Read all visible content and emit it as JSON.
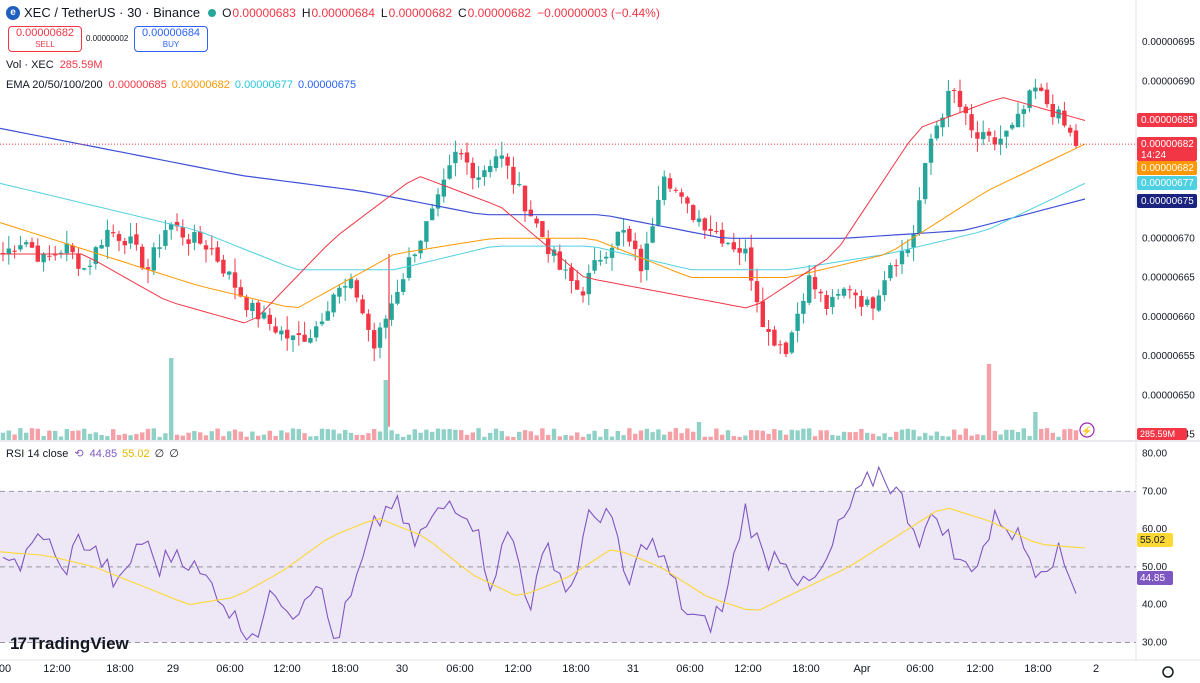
{
  "header": {
    "symbol_icon": "e",
    "title": "XEC / TetherUS · 30 · Binance",
    "o_label": "O",
    "o_value": "0.00000683",
    "h_label": "H",
    "h_value": "0.00000684",
    "l_label": "L",
    "l_value": "0.00000682",
    "c_label": "C",
    "c_value": "0.00000682",
    "change": "−0.00000003 (−0.44%)"
  },
  "trade": {
    "sell_price": "0.00000682",
    "sell_label": "SELL",
    "spread": "0.00000002",
    "buy_price": "0.00000684",
    "buy_label": "BUY"
  },
  "volume_legend": {
    "label": "Vol · XEC",
    "value": "285.59M"
  },
  "ema_legend": {
    "label": "EMA 20/50/100/200",
    "v20": "0.00000685",
    "v50": "0.00000682",
    "v100": "0.00000677",
    "v200": "0.00000675"
  },
  "rsi_legend": {
    "label": "RSI 14 close",
    "rsi": "44.85",
    "ma": "55.02",
    "extra1": "∅",
    "extra2": "∅"
  },
  "branding": {
    "logo_text": "TradingView",
    "logo_mark": "17"
  },
  "colors": {
    "up": "#26a69a",
    "down": "#f23645",
    "ema20": "#f23645",
    "ema50": "#ff9800",
    "ema100": "#4dd0e1",
    "ema200": "#3f51d8",
    "rsi_line": "#7e57c2",
    "rsi_ma": "#fdd835",
    "rsi_band": "#ede7f6"
  },
  "chart_data": [
    {
      "type": "candlestick",
      "title": "XEC / TetherUS · 30 · Binance",
      "ylim": [
        6.443e-06,
        6.973e-06
      ],
      "y_ticks": [
        "0.00000695",
        "0.00000690",
        "0.00000685",
        "0.00000680",
        "0.00000675",
        "0.00000670",
        "0.00000665",
        "0.00000660",
        "0.00000655",
        "0.00000650",
        "0.00000645"
      ],
      "x_ticks": [
        "00",
        "12:00",
        "18:00",
        "29",
        "06:00",
        "12:00",
        "18:00",
        "30",
        "06:00",
        "12:00",
        "18:00",
        "31",
        "06:00",
        "12:00",
        "18:00",
        "Apr",
        "06:00",
        "12:00",
        "18:00",
        "2"
      ],
      "series": [
        {
          "name": "price",
          "waypoints_close": [
            6.68e-06,
            6.7e-06,
            6.67e-06,
            6.69e-06,
            6.66e-06,
            6.71e-06,
            6.7e-06,
            6.66e-06,
            6.72e-06,
            6.7e-06,
            6.69e-06,
            6.65e-06,
            6.61e-06,
            6.59e-06,
            6.57e-06,
            6.58e-06,
            6.63e-06,
            6.64e-06,
            6.56e-06,
            6.63e-06,
            6.69e-06,
            6.74e-06,
            6.81e-06,
            6.78e-06,
            6.81e-06,
            6.76e-06,
            6.71e-06,
            6.66e-06,
            6.63e-06,
            6.68e-06,
            6.71e-06,
            6.66e-06,
            6.79e-06,
            6.74e-06,
            6.72e-06,
            6.7e-06,
            6.68e-06,
            6.58e-06,
            6.56e-06,
            6.65e-06,
            6.61e-06,
            6.64e-06,
            6.61e-06,
            6.67e-06,
            6.69e-06,
            6.83e-06,
            6.89e-06,
            6.83e-06,
            6.82e-06,
            6.84e-06,
            6.89e-06,
            6.86e-06,
            6.82e-06
          ]
        },
        {
          "name": "EMA 20",
          "values": [
            6.68e-06,
            6.68e-06,
            6.62e-06,
            6.59e-06,
            6.7e-06,
            6.78e-06,
            6.74e-06,
            6.65e-06,
            6.63e-06,
            6.61e-06,
            6.68e-06,
            6.84e-06,
            6.88e-06,
            6.85e-06
          ]
        },
        {
          "name": "EMA 50",
          "values": [
            6.72e-06,
            6.68e-06,
            6.64e-06,
            6.61e-06,
            6.68e-06,
            6.7e-06,
            6.7e-06,
            6.65e-06,
            6.65e-06,
            6.68e-06,
            6.76e-06,
            6.82e-06
          ]
        },
        {
          "name": "EMA 100",
          "values": [
            6.77e-06,
            6.74e-06,
            6.71e-06,
            6.66e-06,
            6.66e-06,
            6.69e-06,
            6.69e-06,
            6.66e-06,
            6.66e-06,
            6.68e-06,
            6.71e-06,
            6.77e-06
          ]
        },
        {
          "name": "EMA 200",
          "values": [
            6.84e-06,
            6.81e-06,
            6.78e-06,
            6.76e-06,
            6.73e-06,
            6.73e-06,
            6.7e-06,
            6.7e-06,
            6.71e-06,
            6.75e-06
          ]
        }
      ],
      "volume_last": "285.59M",
      "badges": [
        {
          "text": "0.00000685",
          "color": "#f23645"
        },
        {
          "text": "0.00000682",
          "sub": "14:24",
          "color": "#f23645"
        },
        {
          "text": "0.00000682",
          "color": "#ff9800"
        },
        {
          "text": "0.00000677",
          "color": "#4dd0e1"
        },
        {
          "text": "0.00000675",
          "color": "#1a237e"
        }
      ]
    },
    {
      "type": "line",
      "title": "RSI 14 close",
      "ylim": [
        28,
        82
      ],
      "y_ticks": [
        "80.00",
        "70.00",
        "60.00",
        "50.00",
        "40.00",
        "30.00"
      ],
      "bands": [
        30,
        50,
        70
      ],
      "series": [
        {
          "name": "RSI",
          "waypoints": [
            55,
            50,
            60,
            48,
            58,
            52,
            44,
            58,
            50,
            55,
            48,
            44,
            35,
            33,
            44,
            38,
            48,
            30,
            44,
            60,
            68,
            56,
            62,
            68,
            64,
            46,
            60,
            40,
            56,
            42,
            62,
            66,
            44,
            58,
            50,
            38,
            34,
            40,
            66,
            52,
            54,
            44,
            48,
            62,
            70,
            76,
            68,
            58,
            64,
            50,
            52,
            64,
            58,
            50,
            54,
            45
          ]
        },
        {
          "name": "RSI MA",
          "values": [
            54,
            53,
            50,
            45,
            40,
            42,
            49,
            58,
            63,
            58,
            48,
            42,
            47,
            55,
            50,
            42,
            38,
            44,
            50,
            58,
            66,
            62,
            56,
            55
          ]
        }
      ],
      "badges": [
        {
          "text": "55.02",
          "color": "#fdd835"
        },
        {
          "text": "44.85",
          "color": "#7e57c2"
        }
      ]
    }
  ]
}
